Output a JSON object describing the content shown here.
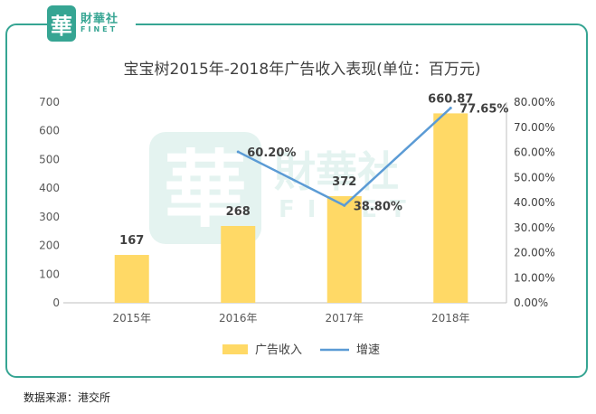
{
  "logo": {
    "mark": "華",
    "cn": "財華社",
    "en": "FINET"
  },
  "watermark": {
    "mark": "華",
    "cn": "財華社",
    "en": "FINET"
  },
  "source_note": "数据来源：港交所",
  "chart_data": {
    "type": "bar+line",
    "title": "宝宝树2015年-2018年广告收入表现(单位：百万元)",
    "categories": [
      "2015年",
      "2016年",
      "2017年",
      "2018年"
    ],
    "series": [
      {
        "name": "广告收入",
        "type": "bar",
        "axis": "left",
        "values": [
          167,
          268,
          372,
          660.87
        ],
        "labels": [
          "167",
          "268",
          "372",
          "660.87"
        ],
        "color": "#ffd966"
      },
      {
        "name": "增速",
        "type": "line",
        "axis": "right",
        "values": [
          null,
          60.2,
          38.8,
          77.65
        ],
        "labels": [
          null,
          "60.20%",
          "38.80%",
          "77.65%"
        ],
        "color": "#5b9bd5"
      }
    ],
    "y_left": {
      "min": 0,
      "max": 700,
      "ticks": [
        "0",
        "100",
        "200",
        "300",
        "400",
        "500",
        "600",
        "700"
      ]
    },
    "y_right": {
      "min": 0,
      "max": 80,
      "ticks": [
        "0.00%",
        "10.00%",
        "20.00%",
        "30.00%",
        "40.00%",
        "50.00%",
        "60.00%",
        "70.00%",
        "80.00%"
      ]
    },
    "legend": {
      "position": "bottom"
    },
    "grid": false
  }
}
